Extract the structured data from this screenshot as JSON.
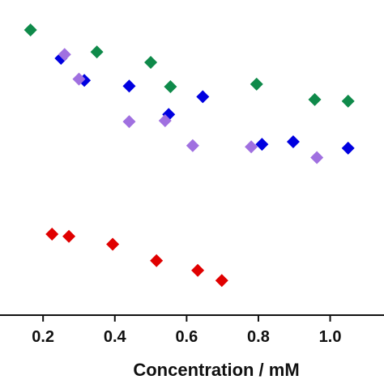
{
  "chart_data": {
    "type": "scatter",
    "title": "",
    "xlabel": "Concentration / mM",
    "ylabel": "",
    "xlim": [
      0.08,
      1.15
    ],
    "ylim": [
      0,
      1
    ],
    "x_ticks": [
      "0.2",
      "0.4",
      "0.6",
      "0.8",
      "1.0"
    ],
    "y_ticks": [],
    "grid": false,
    "marker": "diamond",
    "colors": {
      "green": "#0f8a4a",
      "blue": "#0000e0",
      "purple": "#a070e0",
      "red": "#e00000"
    },
    "series": [
      {
        "color_key": "green",
        "points": [
          {
            "x": 0.165,
            "y": 0.905
          },
          {
            "x": 0.35,
            "y": 0.835
          },
          {
            "x": 0.5,
            "y": 0.802
          },
          {
            "x": 0.555,
            "y": 0.725
          },
          {
            "x": 0.795,
            "y": 0.733
          },
          {
            "x": 0.957,
            "y": 0.684
          },
          {
            "x": 1.05,
            "y": 0.679
          }
        ]
      },
      {
        "color_key": "blue",
        "points": [
          {
            "x": 0.25,
            "y": 0.815
          },
          {
            "x": 0.315,
            "y": 0.745
          },
          {
            "x": 0.44,
            "y": 0.727
          },
          {
            "x": 0.645,
            "y": 0.693
          },
          {
            "x": 0.55,
            "y": 0.637
          },
          {
            "x": 0.81,
            "y": 0.542
          },
          {
            "x": 0.897,
            "y": 0.55
          },
          {
            "x": 1.05,
            "y": 0.53
          }
        ]
      },
      {
        "color_key": "purple",
        "points": [
          {
            "x": 0.26,
            "y": 0.827
          },
          {
            "x": 0.3,
            "y": 0.749
          },
          {
            "x": 0.44,
            "y": 0.614
          },
          {
            "x": 0.54,
            "y": 0.617
          },
          {
            "x": 0.617,
            "y": 0.538
          },
          {
            "x": 0.78,
            "y": 0.534
          },
          {
            "x": 0.963,
            "y": 0.5
          }
        ]
      },
      {
        "color_key": "red",
        "points": [
          {
            "x": 0.225,
            "y": 0.257
          },
          {
            "x": 0.272,
            "y": 0.25
          },
          {
            "x": 0.394,
            "y": 0.225
          },
          {
            "x": 0.516,
            "y": 0.173
          },
          {
            "x": 0.631,
            "y": 0.142
          },
          {
            "x": 0.698,
            "y": 0.11
          }
        ]
      }
    ]
  }
}
